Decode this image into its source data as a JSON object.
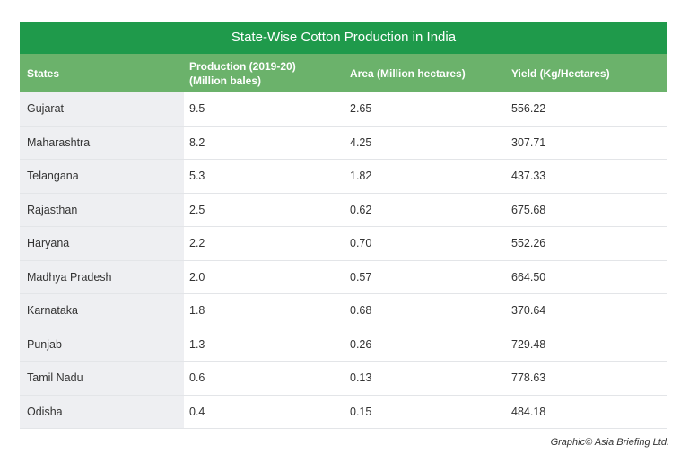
{
  "table": {
    "title": "State-Wise Cotton Production in India",
    "header": [
      "States",
      "Production (2019-20) (Million bales)",
      "Area (Million hectares)",
      "Yield (Kg/Hectares)"
    ],
    "rows": [
      [
        "Gujarat",
        "9.5",
        "2.65",
        "556.22"
      ],
      [
        "Maharashtra",
        "8.2",
        "4.25",
        "307.71"
      ],
      [
        "Telangana",
        "5.3",
        "1.82",
        "437.33"
      ],
      [
        "Rajasthan",
        "2.5",
        "0.62",
        "675.68"
      ],
      [
        "Haryana",
        "2.2",
        "0.70",
        "552.26"
      ],
      [
        "Madhya Pradesh",
        "2.0",
        "0.57",
        "664.50"
      ],
      [
        "Karnataka",
        "1.8",
        "0.68",
        "370.64"
      ],
      [
        "Punjab",
        "1.3",
        "0.26",
        "729.48"
      ],
      [
        "Tamil Nadu",
        "0.6",
        "0.13",
        "778.63"
      ],
      [
        "Odisha",
        "0.4",
        "0.15",
        "484.18"
      ]
    ],
    "credit": "Graphic© Asia Briefing Ltd."
  }
}
